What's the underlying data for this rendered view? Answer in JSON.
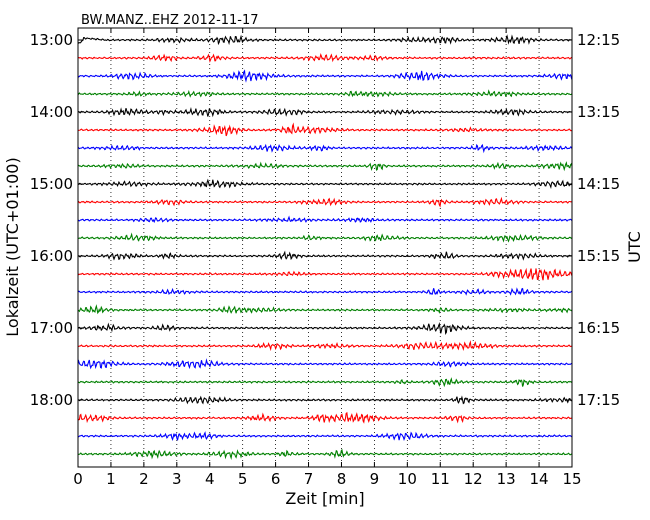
{
  "chart_data": {
    "type": "line",
    "title": "BW.MANZ..EHZ 2012-11-17",
    "xlabel": "Zeit  [min]",
    "ylabel_left": "Lokalzeit (UTC+01:00)",
    "ylabel_right": "UTC",
    "xlim": [
      0,
      15
    ],
    "x_ticks": [
      "0",
      "1",
      "2",
      "3",
      "4",
      "5",
      "6",
      "7",
      "8",
      "9",
      "10",
      "11",
      "12",
      "13",
      "14",
      "15"
    ],
    "trace_count": 24,
    "trace_interval_minutes": 15,
    "trace_colors": [
      "#000000",
      "#ff0000",
      "#0000ff",
      "#008000"
    ],
    "left_ticks": [
      {
        "trace_index": 0,
        "label": "13:00"
      },
      {
        "trace_index": 4,
        "label": "14:00"
      },
      {
        "trace_index": 8,
        "label": "15:00"
      },
      {
        "trace_index": 12,
        "label": "16:00"
      },
      {
        "trace_index": 16,
        "label": "17:00"
      },
      {
        "trace_index": 20,
        "label": "18:00"
      }
    ],
    "right_ticks": [
      {
        "trace_index": 0,
        "label": "12:15"
      },
      {
        "trace_index": 4,
        "label": "13:15"
      },
      {
        "trace_index": 8,
        "label": "14:15"
      },
      {
        "trace_index": 12,
        "label": "15:15"
      },
      {
        "trace_index": 16,
        "label": "16:15"
      },
      {
        "trace_index": 20,
        "label": "17:15"
      }
    ],
    "grid": "vertical-dotted"
  }
}
